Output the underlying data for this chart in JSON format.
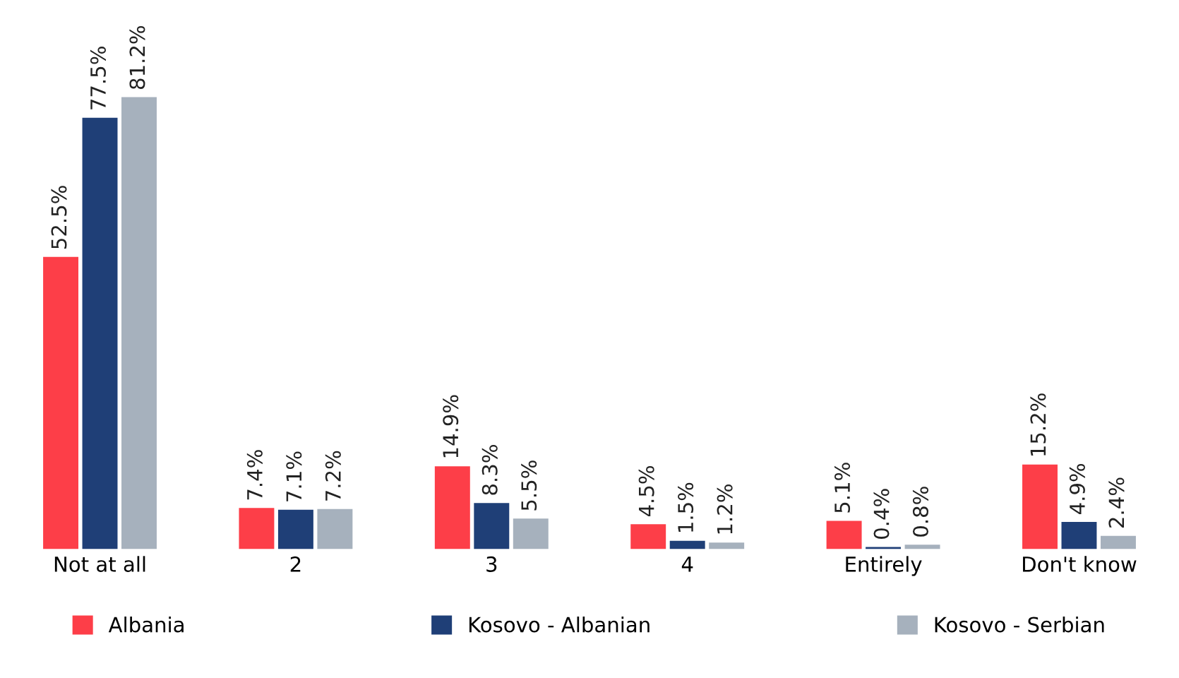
{
  "chart_data": {
    "type": "bar",
    "categories": [
      "Not at all",
      "2",
      "3",
      "4",
      "Entirely",
      "Don't know"
    ],
    "series": [
      {
        "name": "Albania",
        "color": "#fd3e48",
        "values": [
          52.5,
          7.4,
          14.9,
          4.5,
          5.1,
          15.2
        ],
        "value_labels": [
          "52.5%",
          "7.4%",
          "14.9%",
          "4.5%",
          "5.1%",
          "15.2%"
        ]
      },
      {
        "name": "Kosovo - Albanian",
        "color": "#1f3f77",
        "values": [
          77.5,
          7.1,
          8.3,
          1.5,
          0.4,
          4.9
        ],
        "value_labels": [
          "77.5%",
          "7.1%",
          "8.3%",
          "1.5%",
          "0.4%",
          "4.9%"
        ]
      },
      {
        "name": "Kosovo - Serbian",
        "color": "#a6b1bd",
        "values": [
          81.2,
          7.2,
          5.5,
          1.2,
          0.8,
          2.4
        ],
        "value_labels": [
          "81.2%",
          "7.2%",
          "5.5%",
          "1.2%",
          "0.8%",
          "2.4%"
        ]
      }
    ],
    "legend": "bottom",
    "grid": false,
    "tick_labels": "x"
  }
}
